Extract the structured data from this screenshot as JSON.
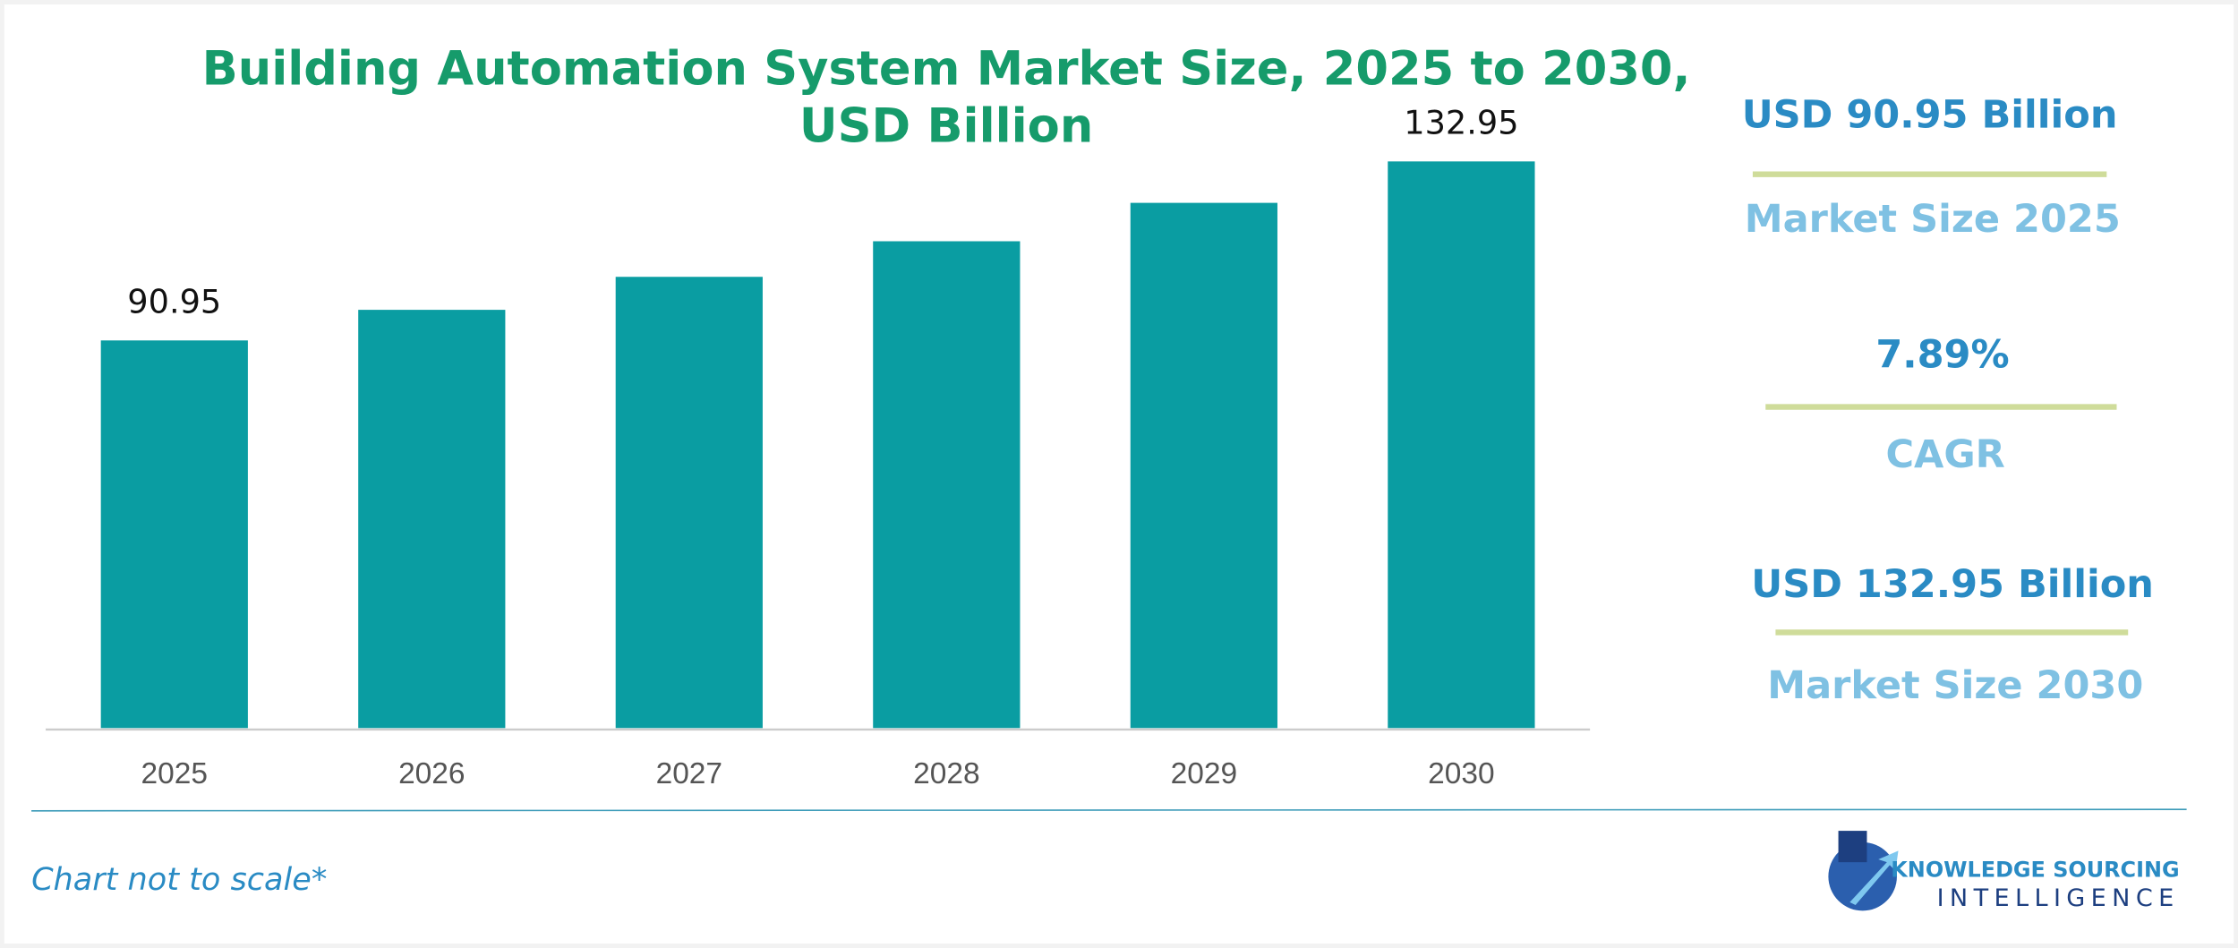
{
  "chart_data": {
    "type": "bar",
    "title": [
      "Building Automation System Market Size, 2025 to 2030,",
      "USD Billion"
    ],
    "categories": [
      "2025",
      "2026",
      "2027",
      "2028",
      "2029",
      "2030"
    ],
    "values": [
      90.95,
      98.13,
      105.87,
      114.22,
      123.23,
      132.95
    ],
    "value_labels": [
      "90.95",
      null,
      null,
      null,
      null,
      "132.95"
    ],
    "color": "#0a9da2",
    "annotations": [
      {
        "value": "USD 90.95 Billion",
        "label": "Market Size 2025"
      },
      {
        "value": "7.89%",
        "label": "CAGR"
      },
      {
        "value": "USD 132.95 Billion",
        "label": "Market Size 2030"
      }
    ],
    "note": "Chart not to scale*"
  },
  "logo": [
    "KNOWLEDGE SOURCING",
    "INTELLIGENCE"
  ]
}
